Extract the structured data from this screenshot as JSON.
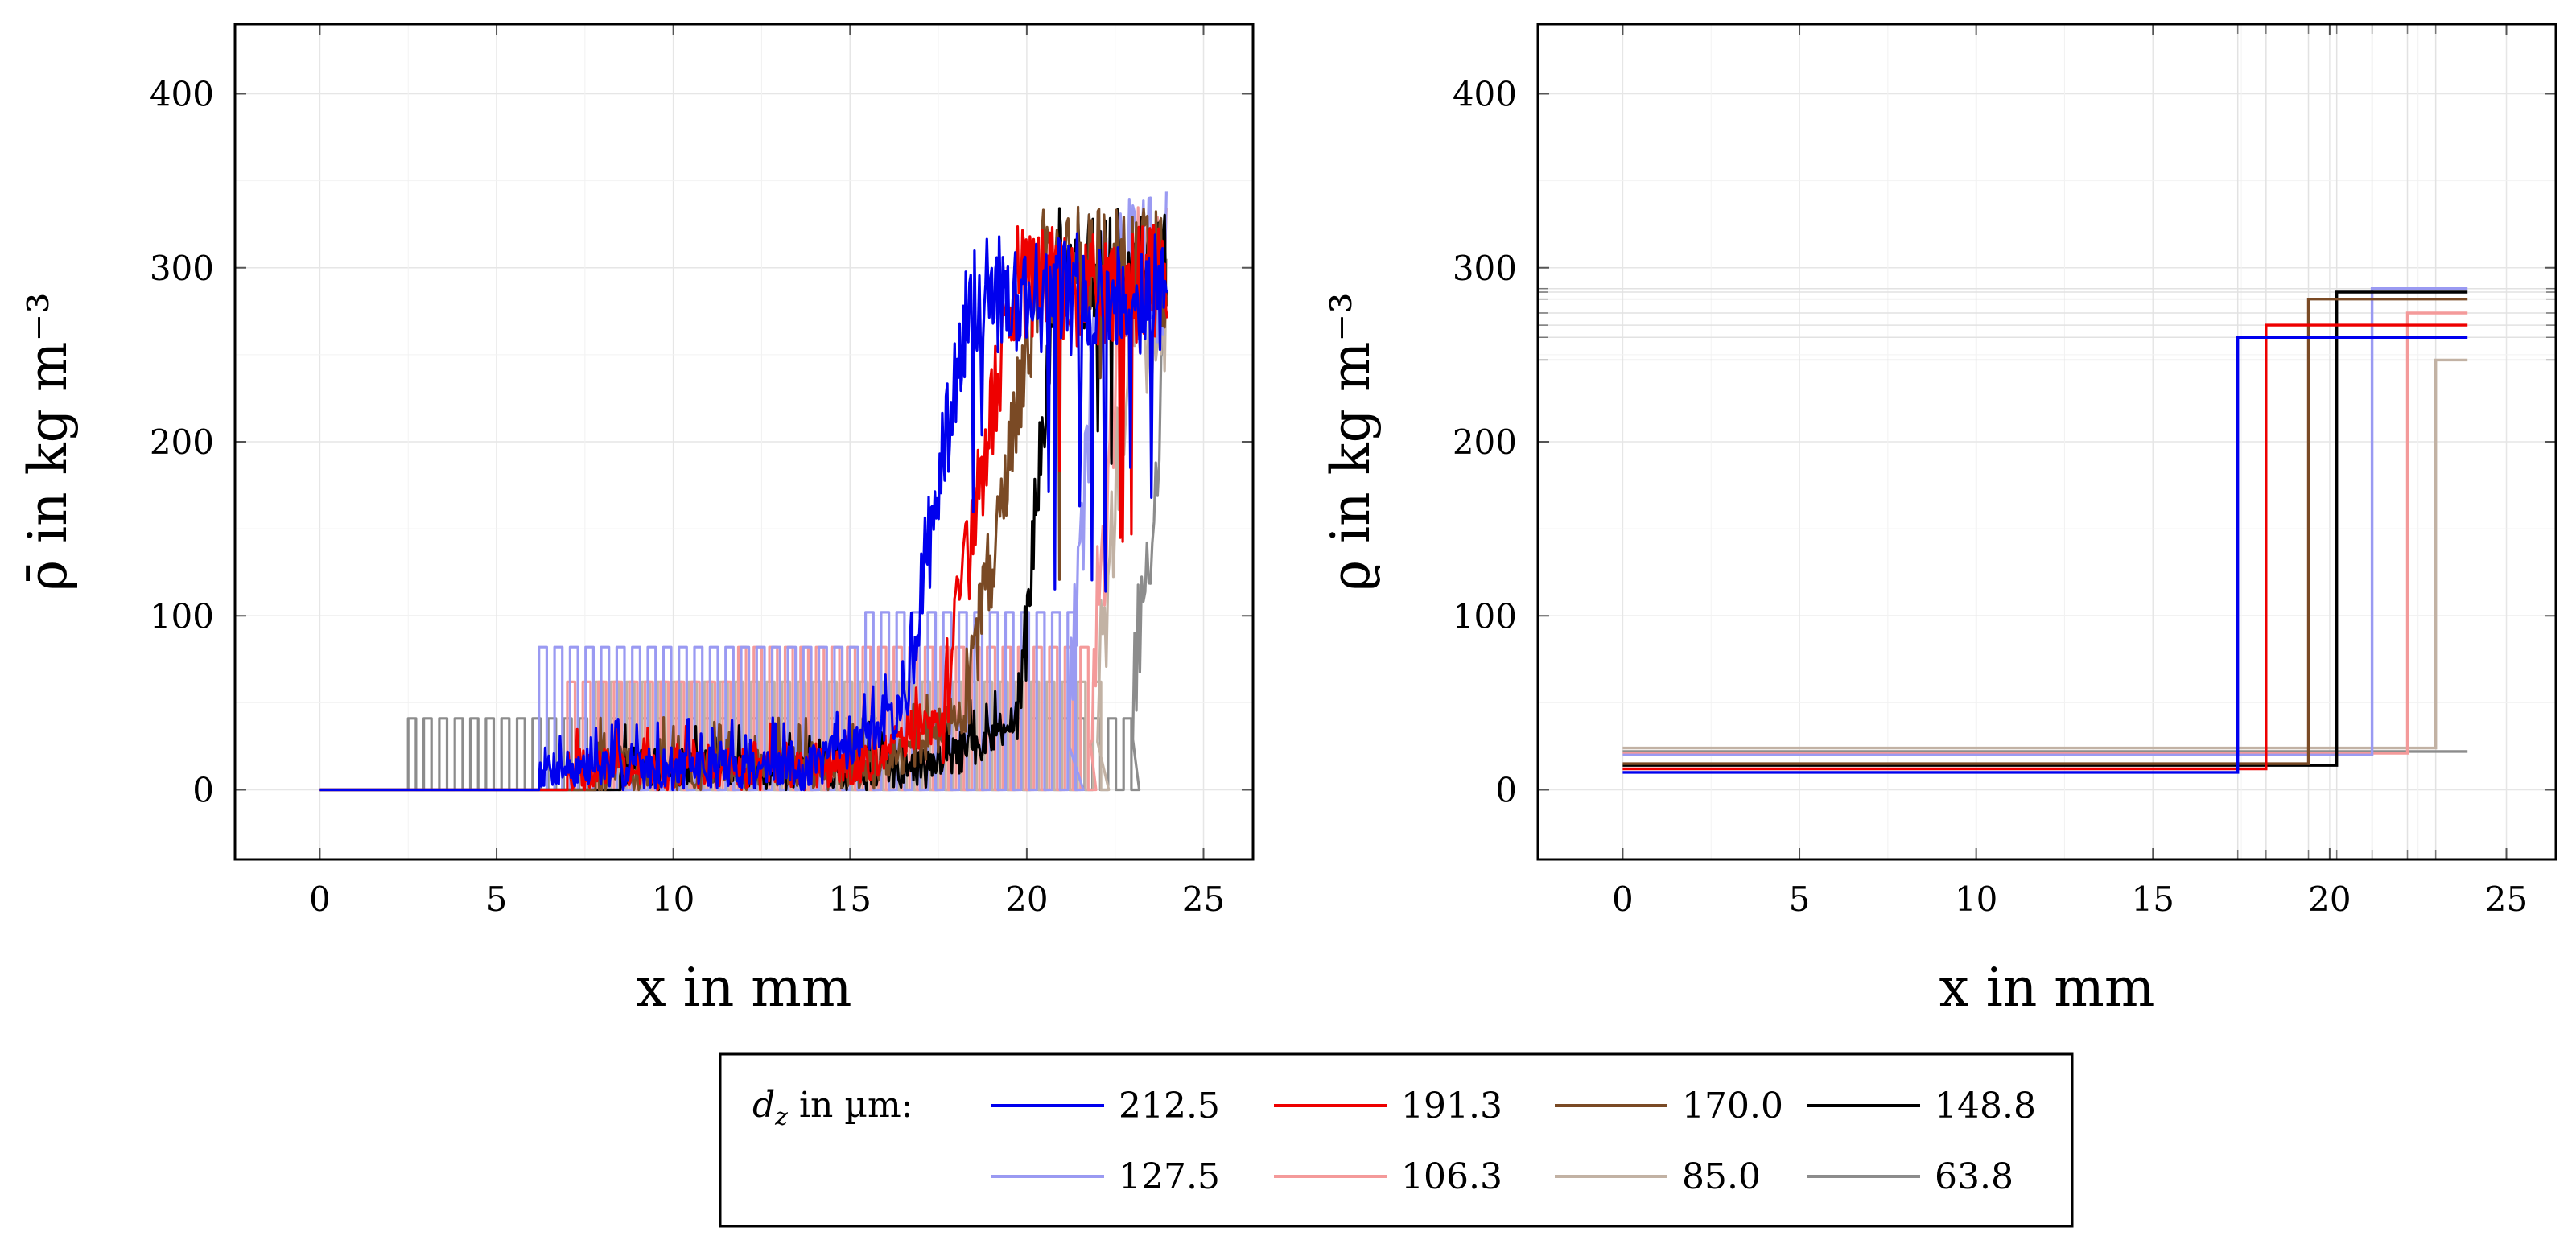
{
  "chart_data": [
    {
      "type": "line",
      "panel": "left",
      "ylabel": "ρ̄ in kg m⁻³",
      "xlabel": "x in mm",
      "xlim": [
        -2.4,
        26.4
      ],
      "ylim": [
        -40,
        440
      ],
      "xticks": [
        0,
        5,
        10,
        15,
        20,
        25
      ],
      "yticks": [
        0,
        100,
        200,
        300,
        400
      ],
      "grid": true,
      "series": [
        {
          "name": "212.5",
          "style": "noisy",
          "start": 6.2,
          "transition": [
            16.4,
            18.4
          ],
          "plateau": 285,
          "end": 24.0,
          "base_noise": 30
        },
        {
          "name": "191.3",
          "style": "noisy",
          "start": 7.0,
          "transition": [
            17.6,
            19.6
          ],
          "plateau": 290,
          "end": 24.0,
          "base_noise": 28
        },
        {
          "name": "170.0",
          "style": "noisy",
          "start": 7.8,
          "transition": [
            18.2,
            20.4
          ],
          "plateau": 300,
          "end": 24.0,
          "base_noise": 30
        },
        {
          "name": "148.8",
          "style": "noisy",
          "start": 8.5,
          "transition": [
            19.8,
            20.8
          ],
          "plateau": 300,
          "end": 24.0,
          "base_noise": 28
        },
        {
          "name": "127.5",
          "style": "square",
          "start": 6.2,
          "step_x": 15.0,
          "level1": 82,
          "level2": 102,
          "rise": 21.2,
          "plateau": 300,
          "end": 24.0,
          "period": 0.44
        },
        {
          "name": "106.3",
          "style": "square",
          "start": 7.0,
          "step_x": 11.6,
          "level1": 62,
          "level2": 82,
          "rise": 21.8,
          "plateau": 290,
          "end": 24.0,
          "period": 0.44
        },
        {
          "name": "85.0",
          "style": "square",
          "start": 7.8,
          "step_x": 0,
          "level1": 62,
          "level2": 62,
          "rise": 22.0,
          "plateau": 270,
          "end": 24.0,
          "period": 0.44
        },
        {
          "name": "63.8",
          "style": "square",
          "start": 2.5,
          "step_x": 0,
          "level1": 41,
          "level2": 41,
          "rise": 23.0,
          "plateau": 240,
          "end": 24.0,
          "period": 0.44
        }
      ]
    },
    {
      "type": "line",
      "panel": "right",
      "ylabel": "ϱ in kg m⁻³",
      "xlabel": "x in mm",
      "xlim": [
        -2.4,
        26.4
      ],
      "ylim": [
        -40,
        440
      ],
      "xticks": [
        0,
        5,
        10,
        15,
        20,
        25
      ],
      "yticks": [
        0,
        100,
        200,
        300,
        400
      ],
      "grid": true,
      "x_end": 23.9,
      "series": [
        {
          "name": "212.5",
          "low": 10,
          "jump_x": 17.4,
          "high": 260
        },
        {
          "name": "191.3",
          "low": 12,
          "jump_x": 18.2,
          "high": 267
        },
        {
          "name": "170.0",
          "low": 15,
          "jump_x": 19.4,
          "high": 282
        },
        {
          "name": "148.8",
          "low": 14,
          "jump_x": 20.2,
          "high": 286
        },
        {
          "name": "127.5",
          "low": 20,
          "jump_x": 21.2,
          "high": 288
        },
        {
          "name": "106.3",
          "low": 21,
          "jump_x": 22.2,
          "high": 274
        },
        {
          "name": "85.0",
          "low": 24,
          "jump_x": 23.0,
          "high": 247
        },
        {
          "name": "63.8",
          "low": 22,
          "jump_x": 23.9,
          "high": 22
        }
      ],
      "extra_gridlines_x": [
        17.4,
        18.2,
        19.4,
        20.2,
        21.2,
        22.2,
        23.0
      ],
      "extra_gridlines_y": [
        247,
        260,
        267,
        274,
        282,
        286,
        288
      ]
    }
  ],
  "legend": {
    "title_var": "d",
    "title_sub": "z",
    "title_rest": " in µm:",
    "entries": [
      {
        "label": "212.5",
        "color": "#0000ee"
      },
      {
        "label": "191.3",
        "color": "#ee0000"
      },
      {
        "label": "170.0",
        "color": "#7a4a25"
      },
      {
        "label": "148.8",
        "color": "#000000"
      },
      {
        "label": "127.5",
        "color": "#9a9af2"
      },
      {
        "label": "106.3",
        "color": "#f49a9a"
      },
      {
        "label": "85.0",
        "color": "#c2b2a4"
      },
      {
        "label": "63.8",
        "color": "#8c8c8c"
      }
    ]
  }
}
